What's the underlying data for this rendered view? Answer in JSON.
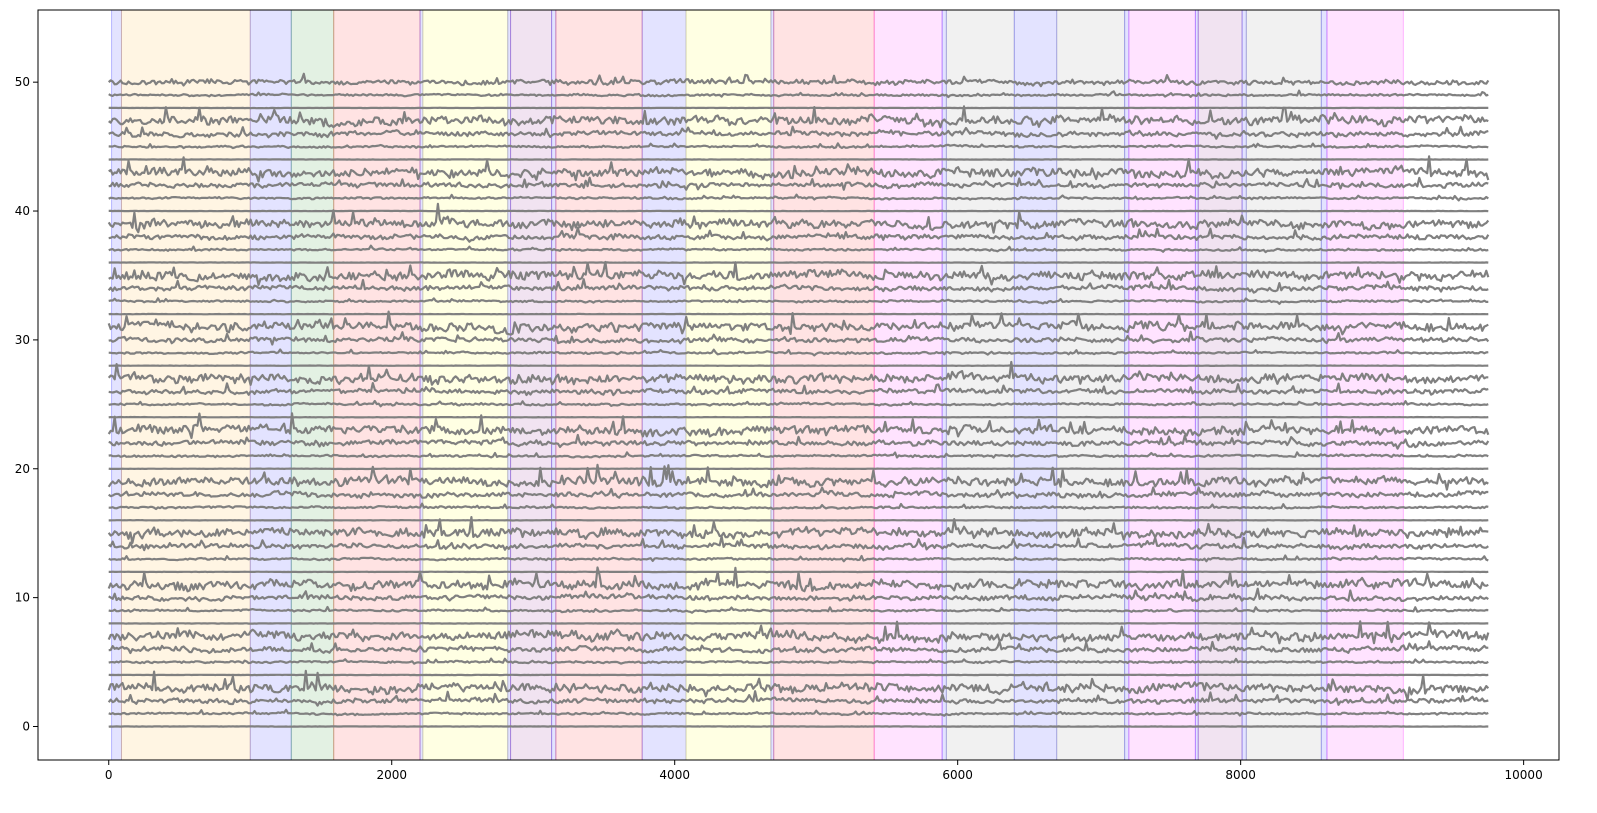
{
  "chart_data": {
    "type": "line",
    "title": "",
    "xlabel": "",
    "ylabel": "",
    "xlim": [
      -500,
      10250
    ],
    "ylim": [
      -2.6,
      55.6
    ],
    "x_ticks": [
      0,
      2000,
      4000,
      6000,
      8000,
      10000
    ],
    "x_tick_labels": [
      "0",
      "2000",
      "4000",
      "6000",
      "8000",
      "10000"
    ],
    "y_ticks": [
      0,
      10,
      20,
      30,
      40,
      50
    ],
    "y_tick_labels": [
      "0",
      "10",
      "20",
      "30",
      "40",
      "50"
    ],
    "grid": false,
    "legend": "none",
    "series_x_range": [
      0,
      9750
    ],
    "series_count": 51,
    "series_offsets": [
      0,
      1,
      2,
      3,
      4,
      5,
      6,
      7,
      8,
      9,
      10,
      11,
      12,
      13,
      14,
      15,
      16,
      17,
      18,
      19,
      20,
      21,
      22,
      23,
      24,
      25,
      26,
      27,
      28,
      29,
      30,
      31,
      32,
      33,
      34,
      35,
      36,
      37,
      38,
      39,
      40,
      41,
      42,
      43,
      44,
      45,
      46,
      47,
      48,
      49,
      50
    ],
    "line_color": "#808080",
    "background_spans": [
      {
        "x0": 20,
        "x1": 90,
        "color": "#0000ff"
      },
      {
        "x0": 90,
        "x1": 1000,
        "color": "#ffa500"
      },
      {
        "x0": 1000,
        "x1": 1290,
        "color": "#0000ff"
      },
      {
        "x0": 1290,
        "x1": 1590,
        "color": "#008000"
      },
      {
        "x0": 1590,
        "x1": 2200,
        "color": "#ff0000"
      },
      {
        "x0": 2200,
        "x1": 2220,
        "color": "#0000ff"
      },
      {
        "x0": 2220,
        "x1": 2820,
        "color": "#ffff00"
      },
      {
        "x0": 2820,
        "x1": 2840,
        "color": "#0000ff"
      },
      {
        "x0": 2840,
        "x1": 3130,
        "color": "#800080"
      },
      {
        "x0": 3130,
        "x1": 3160,
        "color": "#0000ff"
      },
      {
        "x0": 3160,
        "x1": 3770,
        "color": "#ff0000"
      },
      {
        "x0": 3770,
        "x1": 4080,
        "color": "#0000ff"
      },
      {
        "x0": 4080,
        "x1": 4680,
        "color": "#ffff00"
      },
      {
        "x0": 4680,
        "x1": 4700,
        "color": "#0000ff"
      },
      {
        "x0": 4700,
        "x1": 5410,
        "color": "#ff0000"
      },
      {
        "x0": 5410,
        "x1": 5890,
        "color": "#ff00ff"
      },
      {
        "x0": 5890,
        "x1": 5920,
        "color": "#0000ff"
      },
      {
        "x0": 5920,
        "x1": 6400,
        "color": "#808080"
      },
      {
        "x0": 6400,
        "x1": 6700,
        "color": "#0000ff"
      },
      {
        "x0": 6700,
        "x1": 7180,
        "color": "#808080"
      },
      {
        "x0": 7180,
        "x1": 7210,
        "color": "#0000ff"
      },
      {
        "x0": 7210,
        "x1": 7680,
        "color": "#ff00ff"
      },
      {
        "x0": 7680,
        "x1": 7700,
        "color": "#0000ff"
      },
      {
        "x0": 7700,
        "x1": 8010,
        "color": "#800080"
      },
      {
        "x0": 8010,
        "x1": 8040,
        "color": "#0000ff"
      },
      {
        "x0": 8040,
        "x1": 8570,
        "color": "#808080"
      },
      {
        "x0": 8570,
        "x1": 8610,
        "color": "#0000ff"
      },
      {
        "x0": 8610,
        "x1": 9150,
        "color": "#ff00ff"
      }
    ]
  }
}
